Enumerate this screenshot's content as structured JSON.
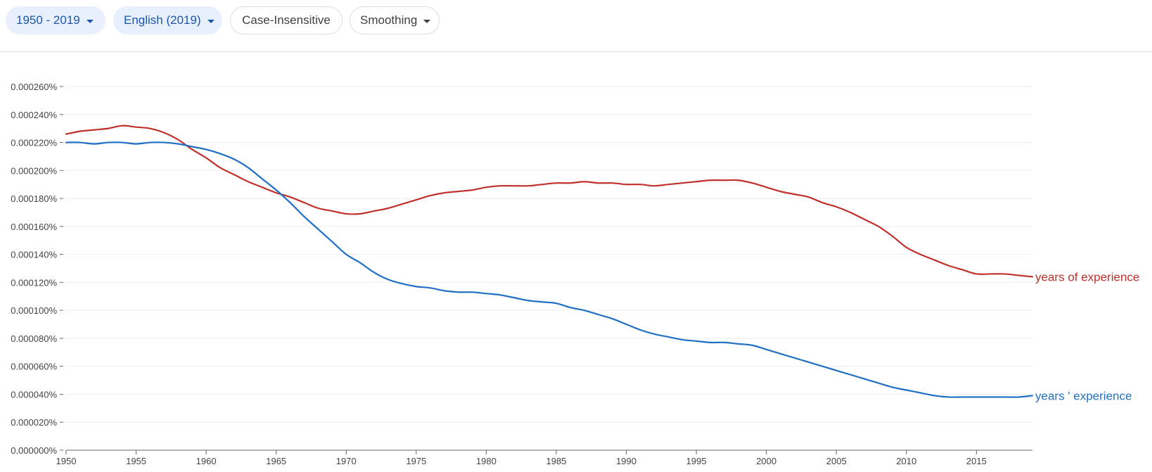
{
  "toolbar": {
    "range_label": "1950 - 2019",
    "corpus_label": "English (2019)",
    "case_label": "Case-Insensitive",
    "smoothing_label": "Smoothing"
  },
  "colors": {
    "accent": "#1a56b0",
    "chip_fill": "#e8f0fe",
    "series_red": "#c0312b",
    "series_blue": "#1f6fc5",
    "grid": "#eeeeee",
    "axis": "#666666"
  },
  "icons": {
    "chip_caret": "caret-down-icon"
  },
  "chart_data": {
    "type": "line",
    "xlim": [
      1950,
      2019
    ],
    "ylim": [
      0,
      0.00026
    ],
    "x_ticks": [
      1950,
      1955,
      1960,
      1965,
      1970,
      1975,
      1980,
      1985,
      1990,
      1995,
      2000,
      2005,
      2010,
      2015
    ],
    "y_ticks": [
      "0.000000%",
      "0.000020%",
      "0.000040%",
      "0.000060%",
      "0.000080%",
      "0.000100%",
      "0.000120%",
      "0.000140%",
      "0.000160%",
      "0.000180%",
      "0.000200%",
      "0.000220%",
      "0.000240%",
      "0.000260%"
    ],
    "y_tick_values": [
      0,
      2e-05,
      4e-05,
      6e-05,
      8e-05,
      0.0001,
      0.00012,
      0.00014,
      0.00016,
      0.00018,
      0.0002,
      0.00022,
      0.00024,
      0.00026
    ],
    "grid": true,
    "legend_placement": "inline-right",
    "x": [
      1950,
      1951,
      1952,
      1953,
      1954,
      1955,
      1956,
      1957,
      1958,
      1959,
      1960,
      1961,
      1962,
      1963,
      1964,
      1965,
      1966,
      1967,
      1968,
      1969,
      1970,
      1971,
      1972,
      1973,
      1974,
      1975,
      1976,
      1977,
      1978,
      1979,
      1980,
      1981,
      1982,
      1983,
      1984,
      1985,
      1986,
      1987,
      1988,
      1989,
      1990,
      1991,
      1992,
      1993,
      1994,
      1995,
      1996,
      1997,
      1998,
      1999,
      2000,
      2001,
      2002,
      2003,
      2004,
      2005,
      2006,
      2007,
      2008,
      2009,
      2010,
      2011,
      2012,
      2013,
      2014,
      2015,
      2016,
      2017,
      2018,
      2019
    ],
    "series": [
      {
        "name": "years of experience",
        "color": "#c0312b",
        "values": [
          0.000226,
          0.000228,
          0.000229,
          0.00023,
          0.000232,
          0.000231,
          0.00023,
          0.000227,
          0.000222,
          0.000215,
          0.000209,
          0.000202,
          0.000197,
          0.000192,
          0.000188,
          0.000184,
          0.000181,
          0.000177,
          0.000173,
          0.000171,
          0.000169,
          0.000169,
          0.000171,
          0.000173,
          0.000176,
          0.000179,
          0.000182,
          0.000184,
          0.000185,
          0.000186,
          0.000188,
          0.000189,
          0.000189,
          0.000189,
          0.00019,
          0.000191,
          0.000191,
          0.000192,
          0.000191,
          0.000191,
          0.00019,
          0.00019,
          0.000189,
          0.00019,
          0.000191,
          0.000192,
          0.000193,
          0.000193,
          0.000193,
          0.000191,
          0.000188,
          0.000185,
          0.000183,
          0.000181,
          0.000177,
          0.000174,
          0.00017,
          0.000165,
          0.00016,
          0.000153,
          0.000145,
          0.00014,
          0.000136,
          0.000132,
          0.000129,
          0.000126,
          0.000126,
          0.000126,
          0.000125,
          0.000124
        ]
      },
      {
        "name": "years ' experience",
        "color": "#1f6fc5",
        "values": [
          0.00022,
          0.00022,
          0.000219,
          0.00022,
          0.00022,
          0.000219,
          0.00022,
          0.00022,
          0.000219,
          0.000217,
          0.000215,
          0.000212,
          0.000208,
          0.000202,
          0.000194,
          0.000186,
          0.000177,
          0.000167,
          0.000158,
          0.000149,
          0.00014,
          0.000134,
          0.000127,
          0.000122,
          0.000119,
          0.000117,
          0.000116,
          0.000114,
          0.000113,
          0.000113,
          0.000112,
          0.000111,
          0.000109,
          0.000107,
          0.000106,
          0.000105,
          0.000102,
          0.0001,
          9.7e-05,
          9.4e-05,
          9e-05,
          8.6e-05,
          8.3e-05,
          8.1e-05,
          7.9e-05,
          7.8e-05,
          7.7e-05,
          7.7e-05,
          7.6e-05,
          7.5e-05,
          7.2e-05,
          6.9e-05,
          6.6e-05,
          6.3e-05,
          6e-05,
          5.7e-05,
          5.4e-05,
          5.1e-05,
          4.8e-05,
          4.5e-05,
          4.3e-05,
          4.1e-05,
          3.9e-05,
          3.8e-05,
          3.8e-05,
          3.8e-05,
          3.8e-05,
          3.8e-05,
          3.8e-05,
          3.9e-05
        ]
      }
    ]
  }
}
